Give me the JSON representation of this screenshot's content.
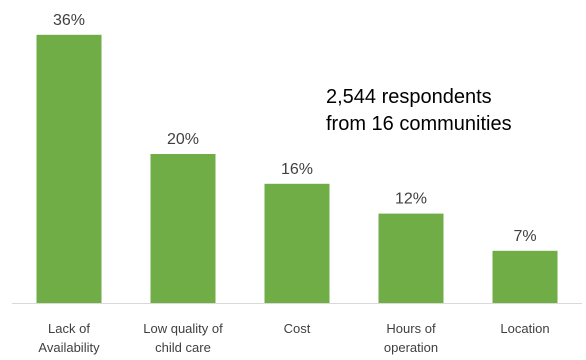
{
  "chart_data": {
    "type": "bar",
    "categories": [
      [
        "Lack of",
        "Availability"
      ],
      [
        "Low quality of",
        "child care"
      ],
      [
        "Cost"
      ],
      [
        "Hours of",
        "operation"
      ],
      [
        "Location"
      ]
    ],
    "values": [
      36,
      20,
      16,
      12,
      7
    ],
    "value_labels": [
      "36%",
      "20%",
      "16%",
      "12%",
      "7%"
    ],
    "value_suffix": "%",
    "ylim": [
      0,
      40
    ],
    "grid": false,
    "title": "",
    "xlabel": "",
    "ylabel": "",
    "bar_color": "#70AD47",
    "axis_color": "#D9D9D9",
    "annotation": [
      "2,544 respondents",
      "from 16 communities"
    ]
  }
}
